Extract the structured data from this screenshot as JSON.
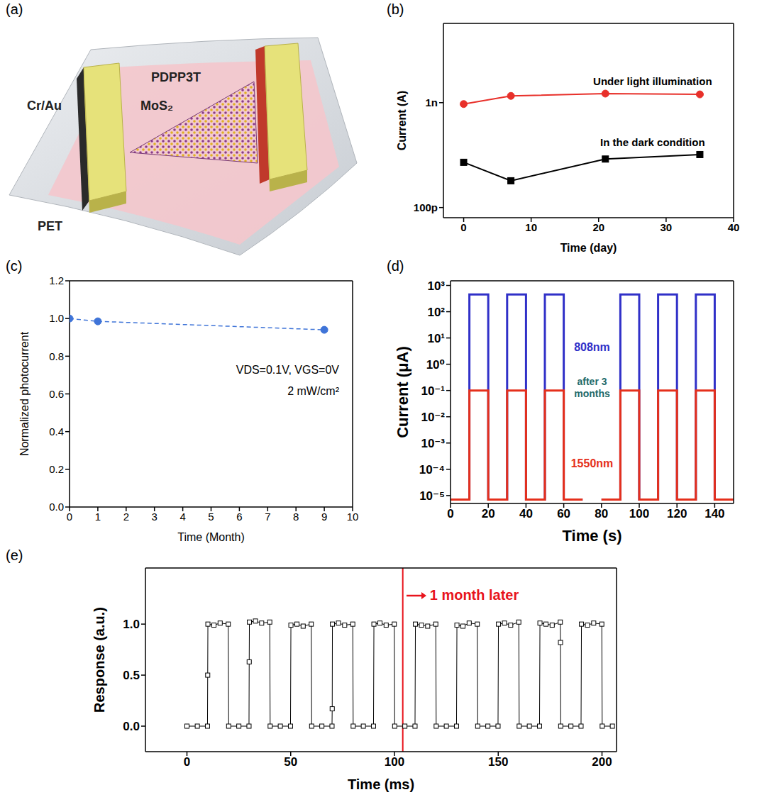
{
  "diagram": {
    "title": "(a)",
    "labels": {
      "film": "PDPP3T",
      "electrode": "Cr/Au",
      "channel": "MoS₂",
      "substrate": "PET"
    }
  },
  "chart_data": [
    {
      "type": "line",
      "title": "(b)",
      "x_label": "Time (day)",
      "y_label": "Current (A)",
      "x": [
        0,
        7,
        21,
        35
      ],
      "series": [
        {
          "name": "Under light illumination",
          "color": "#e8302a",
          "marker": "circle",
          "values": [
            9.7e-10,
            1.16e-09,
            1.22e-09,
            1.2e-09
          ]
        },
        {
          "name": "In the dark condition",
          "color": "#000000",
          "marker": "square",
          "values": [
            2.7e-10,
            1.8e-10,
            2.9e-10,
            3.2e-10
          ]
        }
      ],
      "xlim": [
        -3,
        40
      ],
      "xticks": [
        0,
        10,
        20,
        30,
        40
      ],
      "ylim": [
        8e-11,
        5.7e-09
      ],
      "yticks": [
        {
          "value": 1e-10,
          "label": "100p"
        },
        {
          "value": 1e-09,
          "label": "1n"
        }
      ],
      "log": "y"
    },
    {
      "type": "line",
      "title": "(c)",
      "x_label": "Time (Month)",
      "y_label": "Normalized photocurrent",
      "x": [
        0,
        1,
        9
      ],
      "series": [
        {
          "color": "#3f74d8",
          "marker": "circle",
          "line_style": "dashed",
          "values": [
            1.0,
            0.985,
            0.94
          ]
        }
      ],
      "xlim": [
        0,
        10
      ],
      "xticks": [
        0,
        1,
        2,
        3,
        4,
        5,
        6,
        7,
        8,
        9,
        10
      ],
      "ylim": [
        0,
        1.2
      ],
      "yticks": [
        {
          "value": 0,
          "label": "0.0"
        },
        0.2,
        0.4,
        0.6,
        0.8,
        {
          "value": 1,
          "label": "1.0"
        },
        1.2
      ],
      "annotations": [
        {
          "text": "VDS=0.1V, VGS=0V"
        },
        {
          "text": "2 mW/cm²"
        }
      ]
    },
    {
      "type": "line",
      "title": "(d)",
      "x_label": "Time (s)",
      "y_label": "Current (μA)",
      "x": [
        0,
        10,
        10,
        20,
        20,
        30,
        30,
        40,
        40,
        50,
        50,
        60,
        60,
        70,
        75,
        80,
        90,
        90,
        100,
        100,
        110,
        110,
        120,
        120,
        130,
        130,
        140,
        140,
        150
      ],
      "series": [
        {
          "name": "808nm",
          "color": "#3030c8",
          "values": [
            7e-06,
            7e-06,
            450,
            450,
            7e-06,
            7e-06,
            450,
            450,
            7e-06,
            7e-06,
            450,
            450,
            7e-06,
            7e-06,
            null,
            7e-06,
            7e-06,
            450,
            450,
            7e-06,
            7e-06,
            450,
            450,
            7e-06,
            7e-06,
            450,
            450,
            7e-06,
            7e-06
          ]
        },
        {
          "name": "1550nm",
          "color": "#e5301c",
          "values": [
            7e-06,
            7e-06,
            0.1,
            0.1,
            7e-06,
            7e-06,
            0.1,
            0.1,
            7e-06,
            7e-06,
            0.1,
            0.1,
            7e-06,
            7e-06,
            null,
            7e-06,
            7e-06,
            0.1,
            0.1,
            7e-06,
            7e-06,
            0.1,
            0.1,
            7e-06,
            7e-06,
            0.1,
            0.1,
            7e-06,
            7e-06
          ]
        }
      ],
      "xlim": [
        0,
        150
      ],
      "xticks": [
        0,
        20,
        40,
        60,
        80,
        100,
        120,
        140
      ],
      "ylim": [
        5e-06,
        1500
      ],
      "yticks": [
        {
          "value": 1e-05,
          "label": "10⁻⁵"
        },
        {
          "value": 0.0001,
          "label": "10⁻⁴"
        },
        {
          "value": 0.001,
          "label": "10⁻³"
        },
        {
          "value": 0.01,
          "label": "10⁻²"
        },
        {
          "value": 0.1,
          "label": "10⁻¹"
        },
        {
          "value": 1,
          "label": "10⁰"
        },
        {
          "value": 10,
          "label": "10¹"
        },
        {
          "value": 100,
          "label": "10²"
        },
        {
          "value": 1000,
          "label": "10³"
        }
      ],
      "log": "y",
      "annotations": [
        {
          "text": "after 3 months",
          "color": "#1f6b6b"
        }
      ]
    },
    {
      "type": "line",
      "title": "(e)",
      "x_label": "Time (ms)",
      "y_label": "Response (a.u.)",
      "x": [
        0,
        5,
        9.9,
        10,
        10.1,
        13,
        16,
        19.9,
        20.1,
        25,
        29.9,
        30,
        30.1,
        33,
        36,
        39.9,
        40.1,
        45,
        49.9,
        50.1,
        53,
        56,
        59.9,
        60.1,
        65,
        69.9,
        70,
        70.1,
        73,
        76,
        79.9,
        80.1,
        85,
        89.9,
        90.1,
        93,
        96,
        99.9,
        100.1,
        105,
        109.9,
        110.1,
        113,
        116,
        119.9,
        120.1,
        125,
        129.9,
        130.1,
        133,
        136,
        139.9,
        140.1,
        145,
        149.9,
        150.1,
        153,
        156,
        159.9,
        160.1,
        165,
        169.9,
        170.1,
        173,
        176,
        179.9,
        180,
        180.1,
        185,
        189.9,
        190.1,
        193,
        196,
        199.9,
        200.1,
        205
      ],
      "series": [
        {
          "color": "#000000",
          "marker": "open_square",
          "values": [
            0,
            0,
            0,
            0.5,
            1.0,
            0.99,
            1.01,
            1.0,
            0,
            0,
            0,
            0.63,
            1.02,
            1.03,
            1.01,
            1.02,
            0,
            0,
            0,
            0.99,
            1.0,
            0.98,
            1.0,
            0,
            0,
            0,
            0.17,
            1.0,
            1.01,
            0.99,
            1.0,
            0,
            0,
            0,
            1.0,
            1.01,
            0.99,
            1.0,
            0,
            0,
            0,
            1.0,
            0.99,
            0.98,
            1.0,
            0,
            0,
            0,
            0.99,
            0.98,
            1.01,
            1.0,
            0,
            0,
            0,
            1.0,
            1.01,
            0.99,
            1.02,
            0,
            0,
            0,
            1.01,
            1.0,
            0.99,
            1.02,
            0.82,
            0,
            0,
            0,
            1.0,
            0.99,
            1.01,
            1.0,
            0,
            0
          ]
        }
      ],
      "xlim": [
        -20,
        207
      ],
      "xticks": [
        0,
        50,
        100,
        150,
        200
      ],
      "ylim": [
        -0.25,
        1.55
      ],
      "yticks": [
        {
          "value": 0,
          "label": "0.0"
        },
        0.5,
        {
          "value": 1,
          "label": "1.0"
        }
      ],
      "annotations": [
        {
          "text": "1 month later",
          "x": 104,
          "color": "#e8141c"
        }
      ]
    }
  ]
}
